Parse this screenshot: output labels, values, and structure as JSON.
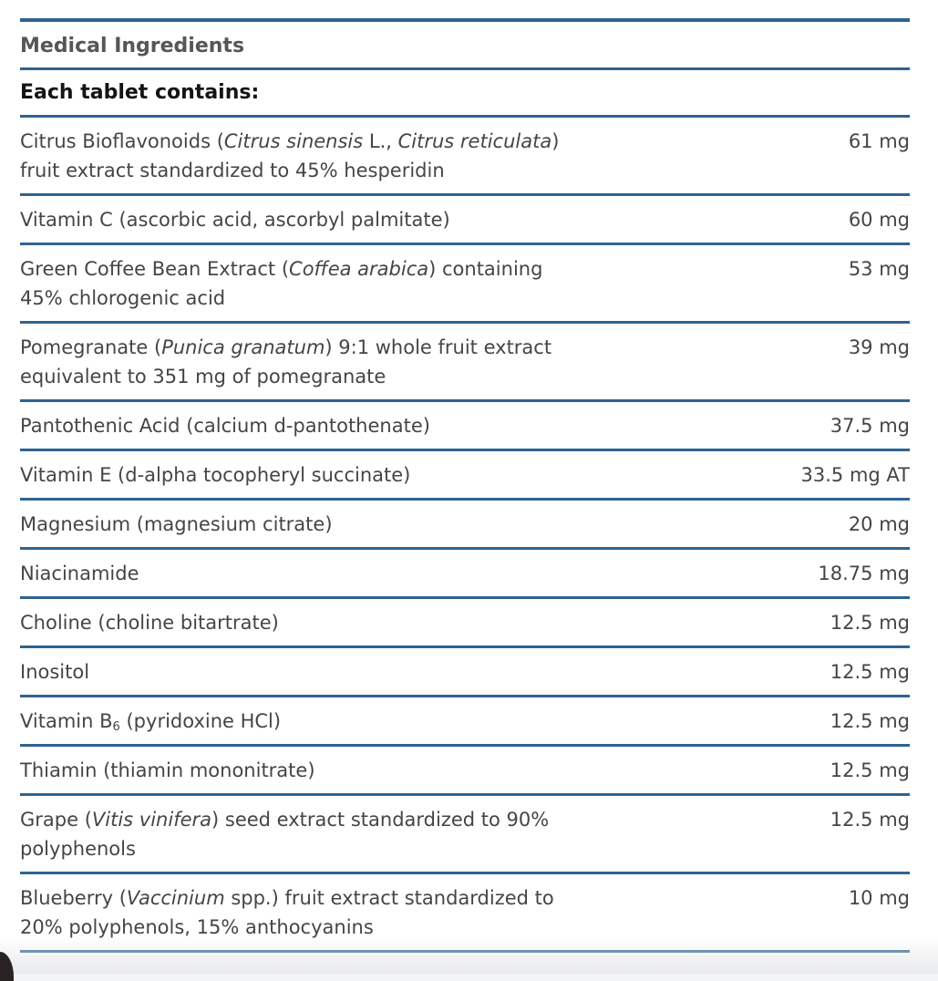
{
  "colors": {
    "rule_blue": "#2e6390",
    "title_gray": "#55565a",
    "text_gray": "#454545",
    "subtitle_black": "#141414",
    "corner_dark": "#2a2323"
  },
  "header": {
    "title": "Medical Ingredients",
    "subtitle": "Each tablet contains:"
  },
  "ingredients": [
    {
      "lines": [
        [
          {
            "t": "Citrus Bioflavonoids ("
          },
          {
            "t": "Citrus sinensis",
            "i": true
          },
          {
            "t": " L., "
          },
          {
            "t": "Citrus reticulata",
            "i": true
          },
          {
            "t": ")"
          }
        ],
        [
          {
            "t": "fruit extract standardized to 45% hesperidin"
          }
        ]
      ],
      "amount": "61 mg"
    },
    {
      "lines": [
        [
          {
            "t": "Vitamin C (ascorbic acid, ascorbyl palmitate)"
          }
        ]
      ],
      "amount": "60 mg"
    },
    {
      "lines": [
        [
          {
            "t": "Green Coffee Bean Extract ("
          },
          {
            "t": "Coffea arabica",
            "i": true
          },
          {
            "t": ") containing"
          }
        ],
        [
          {
            "t": "45% chlorogenic acid"
          }
        ]
      ],
      "amount": "53 mg"
    },
    {
      "lines": [
        [
          {
            "t": "Pomegranate ("
          },
          {
            "t": "Punica granatum",
            "i": true
          },
          {
            "t": ") 9:1 whole fruit extract"
          }
        ],
        [
          {
            "t": "equivalent to 351 mg of pomegranate"
          }
        ]
      ],
      "amount": "39 mg"
    },
    {
      "lines": [
        [
          {
            "t": "Pantothenic Acid (calcium d-pantothenate)"
          }
        ]
      ],
      "amount": "37.5 mg"
    },
    {
      "lines": [
        [
          {
            "t": "Vitamin E (d-alpha tocopheryl succinate)"
          }
        ]
      ],
      "amount": "33.5 mg AT"
    },
    {
      "lines": [
        [
          {
            "t": "Magnesium (magnesium citrate)"
          }
        ]
      ],
      "amount": "20 mg"
    },
    {
      "lines": [
        [
          {
            "t": "Niacinamide"
          }
        ]
      ],
      "amount": "18.75 mg"
    },
    {
      "lines": [
        [
          {
            "t": "Choline (choline bitartrate)"
          }
        ]
      ],
      "amount": "12.5 mg"
    },
    {
      "lines": [
        [
          {
            "t": "Inositol"
          }
        ]
      ],
      "amount": "12.5 mg"
    },
    {
      "lines": [
        [
          {
            "t": "Vitamin B"
          },
          {
            "t": "6",
            "sub": true
          },
          {
            "t": " (pyridoxine HCl)"
          }
        ]
      ],
      "amount": "12.5 mg"
    },
    {
      "lines": [
        [
          {
            "t": "Thiamin (thiamin mononitrate)"
          }
        ]
      ],
      "amount": "12.5 mg"
    },
    {
      "lines": [
        [
          {
            "t": "Grape ("
          },
          {
            "t": "Vitis vinifera",
            "i": true
          },
          {
            "t": ") seed extract standardized to 90%"
          }
        ],
        [
          {
            "t": "polyphenols"
          }
        ]
      ],
      "amount": "12.5 mg"
    },
    {
      "lines": [
        [
          {
            "t": "Blueberry ("
          },
          {
            "t": "Vaccinium",
            "i": true
          },
          {
            "t": " spp.) fruit extract standardized to"
          }
        ],
        [
          {
            "t": "20% polyphenols, 15% anthocyanins"
          }
        ]
      ],
      "amount": "10 mg"
    }
  ]
}
